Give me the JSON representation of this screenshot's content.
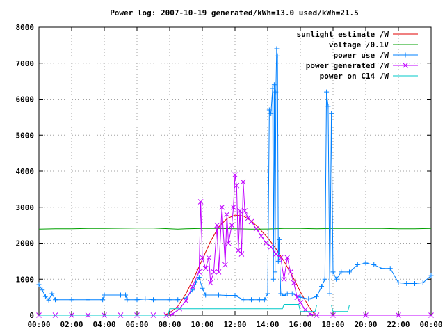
{
  "chart_data": {
    "type": "line",
    "title": "Power log: 2007-10-19 generated/kWh=13.0 used/kWh=21.5",
    "xlabel": "",
    "ylabel": "",
    "x_tick_labels": [
      "00:00",
      "02:00",
      "04:00",
      "06:00",
      "08:00",
      "10:00",
      "12:00",
      "14:00",
      "16:00",
      "18:00",
      "20:00",
      "22:00",
      "00:00"
    ],
    "x_tick_values": [
      0,
      2,
      4,
      6,
      8,
      10,
      12,
      14,
      16,
      18,
      20,
      22,
      24
    ],
    "y_tick_labels": [
      "0",
      "1000",
      "2000",
      "3000",
      "4000",
      "5000",
      "6000",
      "7000",
      "8000"
    ],
    "y_tick_values": [
      0,
      1000,
      2000,
      3000,
      4000,
      5000,
      6000,
      7000,
      8000
    ],
    "xlim": [
      0,
      24
    ],
    "ylim": [
      0,
      8000
    ],
    "grid": true,
    "legend_position": "top-right",
    "series": [
      {
        "name": "sunlight estimate /W",
        "color": "#e00000",
        "marker": "none",
        "points": [
          [
            7.6,
            0
          ],
          [
            8,
            60
          ],
          [
            8.5,
            250
          ],
          [
            9,
            600
          ],
          [
            9.5,
            1050
          ],
          [
            10,
            1550
          ],
          [
            10.5,
            2050
          ],
          [
            11,
            2450
          ],
          [
            11.5,
            2680
          ],
          [
            12,
            2780
          ],
          [
            12.5,
            2760
          ],
          [
            13,
            2620
          ],
          [
            13.5,
            2400
          ],
          [
            14,
            2150
          ],
          [
            14.5,
            1850
          ],
          [
            15,
            1500
          ],
          [
            15.5,
            1100
          ],
          [
            16,
            650
          ],
          [
            16.5,
            250
          ],
          [
            16.9,
            0
          ]
        ]
      },
      {
        "name": "voltage /0.1V",
        "color": "#00a000",
        "marker": "none",
        "points": [
          [
            0,
            2390
          ],
          [
            1,
            2400
          ],
          [
            2,
            2400
          ],
          [
            3,
            2410
          ],
          [
            4,
            2410
          ],
          [
            5,
            2415
          ],
          [
            6,
            2420
          ],
          [
            7,
            2420
          ],
          [
            8,
            2400
          ],
          [
            8.5,
            2390
          ],
          [
            9,
            2400
          ],
          [
            10,
            2410
          ],
          [
            11,
            2410
          ],
          [
            12,
            2400
          ],
          [
            13,
            2390
          ],
          [
            14,
            2395
          ],
          [
            15,
            2410
          ],
          [
            16,
            2410
          ],
          [
            17,
            2400
          ],
          [
            18,
            2410
          ],
          [
            19,
            2410
          ],
          [
            20,
            2410
          ],
          [
            21,
            2410
          ],
          [
            22,
            2400
          ],
          [
            23,
            2400
          ],
          [
            24,
            2410
          ]
        ]
      },
      {
        "name": "power use /W",
        "color": "#0080ff",
        "marker": "plus",
        "points": [
          [
            0,
            850
          ],
          [
            0.2,
            700
          ],
          [
            0.4,
            520
          ],
          [
            0.6,
            420
          ],
          [
            0.8,
            600
          ],
          [
            1,
            430
          ],
          [
            2,
            430
          ],
          [
            3,
            430
          ],
          [
            3.9,
            430
          ],
          [
            4,
            560
          ],
          [
            5,
            560
          ],
          [
            5.3,
            560
          ],
          [
            5.4,
            430
          ],
          [
            6,
            430
          ],
          [
            6.5,
            450
          ],
          [
            7,
            430
          ],
          [
            8,
            430
          ],
          [
            8.5,
            430
          ],
          [
            9,
            480
          ],
          [
            9.4,
            700
          ],
          [
            9.6,
            900
          ],
          [
            9.8,
            1050
          ],
          [
            10,
            750
          ],
          [
            10.2,
            560
          ],
          [
            11,
            560
          ],
          [
            11.5,
            550
          ],
          [
            12,
            550
          ],
          [
            12.5,
            430
          ],
          [
            13,
            430
          ],
          [
            13.5,
            430
          ],
          [
            13.8,
            430
          ],
          [
            14,
            600
          ],
          [
            14.1,
            5700
          ],
          [
            14.2,
            5600
          ],
          [
            14.3,
            6300
          ],
          [
            14.35,
            1000
          ],
          [
            14.4,
            6400
          ],
          [
            14.45,
            1200
          ],
          [
            14.5,
            6200
          ],
          [
            14.55,
            7400
          ],
          [
            14.6,
            7200
          ],
          [
            14.65,
            1500
          ],
          [
            14.7,
            2100
          ],
          [
            14.8,
            600
          ],
          [
            15,
            550
          ],
          [
            15.2,
            600
          ],
          [
            15.5,
            600
          ],
          [
            16,
            500
          ],
          [
            16.5,
            450
          ],
          [
            17,
            520
          ],
          [
            17.3,
            800
          ],
          [
            17.5,
            1000
          ],
          [
            17.6,
            6200
          ],
          [
            17.7,
            5800
          ],
          [
            17.8,
            600
          ],
          [
            17.9,
            5600
          ],
          [
            18,
            1200
          ],
          [
            18.2,
            1000
          ],
          [
            18.5,
            1200
          ],
          [
            19,
            1200
          ],
          [
            19.5,
            1400
          ],
          [
            20,
            1450
          ],
          [
            20.5,
            1400
          ],
          [
            21,
            1300
          ],
          [
            21.5,
            1300
          ],
          [
            22,
            900
          ],
          [
            22.5,
            880
          ],
          [
            23,
            880
          ],
          [
            23.5,
            900
          ],
          [
            24,
            1100
          ]
        ]
      },
      {
        "name": "power generated /W",
        "color": "#c000ff",
        "marker": "cross",
        "points": [
          [
            0,
            0
          ],
          [
            1,
            0
          ],
          [
            2,
            0
          ],
          [
            3,
            0
          ],
          [
            4,
            0
          ],
          [
            5,
            0
          ],
          [
            6,
            0
          ],
          [
            7,
            0
          ],
          [
            7.8,
            0
          ],
          [
            8.2,
            40
          ],
          [
            8.6,
            180
          ],
          [
            9,
            400
          ],
          [
            9.4,
            800
          ],
          [
            9.8,
            1200
          ],
          [
            9.9,
            3150
          ],
          [
            10,
            1600
          ],
          [
            10.2,
            1300
          ],
          [
            10.4,
            1600
          ],
          [
            10.5,
            900
          ],
          [
            10.7,
            1200
          ],
          [
            10.9,
            2500
          ],
          [
            11,
            1200
          ],
          [
            11.2,
            3000
          ],
          [
            11.4,
            1400
          ],
          [
            11.5,
            2800
          ],
          [
            11.6,
            2000
          ],
          [
            11.8,
            2500
          ],
          [
            11.9,
            3000
          ],
          [
            12,
            3900
          ],
          [
            12.1,
            3600
          ],
          [
            12.2,
            1800
          ],
          [
            12.3,
            2900
          ],
          [
            12.4,
            1700
          ],
          [
            12.5,
            3700
          ],
          [
            12.6,
            2900
          ],
          [
            12.8,
            2700
          ],
          [
            13,
            2600
          ],
          [
            13.3,
            2400
          ],
          [
            13.6,
            2200
          ],
          [
            13.9,
            2000
          ],
          [
            14.2,
            1900
          ],
          [
            14.5,
            1700
          ],
          [
            14.8,
            1600
          ],
          [
            15,
            1000
          ],
          [
            15.2,
            1600
          ],
          [
            15.4,
            1200
          ],
          [
            15.6,
            900
          ],
          [
            15.8,
            500
          ],
          [
            16,
            350
          ],
          [
            16.3,
            150
          ],
          [
            16.6,
            40
          ],
          [
            17,
            0
          ],
          [
            18,
            0
          ],
          [
            20,
            0
          ],
          [
            22,
            0
          ],
          [
            24,
            0
          ]
        ]
      },
      {
        "name": "power on C14 /W",
        "color": "#00c8c8",
        "marker": "none",
        "points": [
          [
            0,
            0
          ],
          [
            7.9,
            0
          ],
          [
            8,
            180
          ],
          [
            10,
            180
          ],
          [
            12,
            180
          ],
          [
            14,
            180
          ],
          [
            14.9,
            180
          ],
          [
            15,
            300
          ],
          [
            15.9,
            300
          ],
          [
            16,
            100
          ],
          [
            16.9,
            100
          ],
          [
            17,
            280
          ],
          [
            17.9,
            280
          ],
          [
            18,
            100
          ],
          [
            18.9,
            100
          ],
          [
            19,
            280
          ],
          [
            24,
            280
          ]
        ]
      }
    ]
  }
}
